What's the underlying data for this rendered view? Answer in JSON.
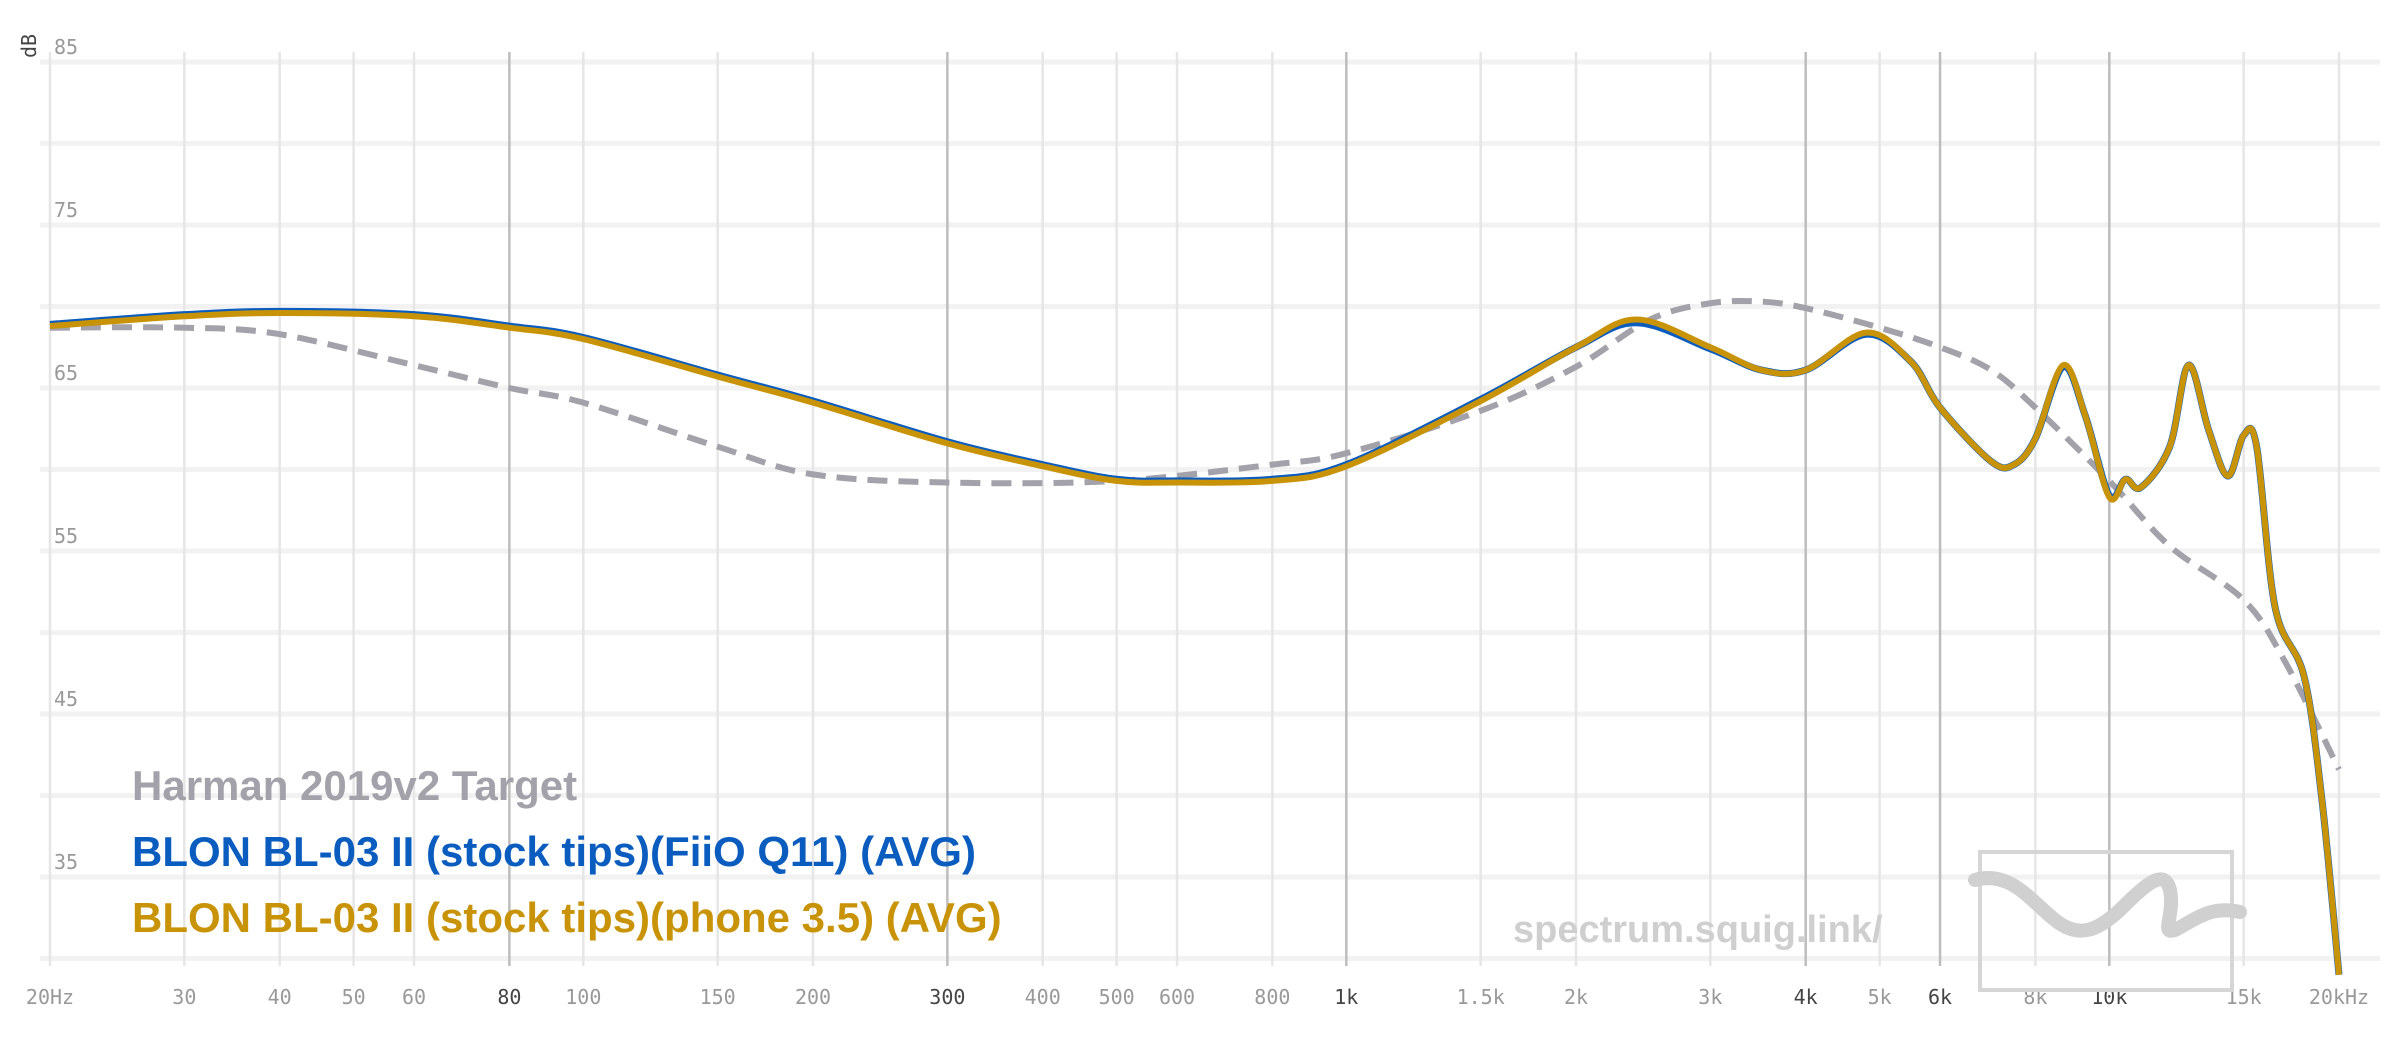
{
  "chart_data": {
    "type": "line",
    "title": "",
    "xlabel": "",
    "ylabel": "dB",
    "xscale": "log",
    "xlim": [
      20,
      20000
    ],
    "ylim": [
      30,
      88
    ],
    "grid": true,
    "legend_placement": "bottom-left",
    "y_ticks": [
      85,
      75,
      65,
      55,
      45,
      35
    ],
    "x_ticks": [
      {
        "value": 20,
        "label": "20Hz",
        "major": false
      },
      {
        "value": 30,
        "label": "30",
        "major": false
      },
      {
        "value": 40,
        "label": "40",
        "major": false
      },
      {
        "value": 50,
        "label": "50",
        "major": false
      },
      {
        "value": 60,
        "label": "60",
        "major": false
      },
      {
        "value": 80,
        "label": "80",
        "major": true
      },
      {
        "value": 100,
        "label": "100",
        "major": false
      },
      {
        "value": 150,
        "label": "150",
        "major": false
      },
      {
        "value": 200,
        "label": "200",
        "major": false
      },
      {
        "value": 300,
        "label": "300",
        "major": true
      },
      {
        "value": 400,
        "label": "400",
        "major": false
      },
      {
        "value": 500,
        "label": "500",
        "major": false
      },
      {
        "value": 600,
        "label": "600",
        "major": false
      },
      {
        "value": 800,
        "label": "800",
        "major": false
      },
      {
        "value": 1000,
        "label": "1k",
        "major": true
      },
      {
        "value": 1500,
        "label": "1.5k",
        "major": false
      },
      {
        "value": 2000,
        "label": "2k",
        "major": false
      },
      {
        "value": 3000,
        "label": "3k",
        "major": false
      },
      {
        "value": 4000,
        "label": "4k",
        "major": true
      },
      {
        "value": 5000,
        "label": "5k",
        "major": false
      },
      {
        "value": 6000,
        "label": "6k",
        "major": true
      },
      {
        "value": 8000,
        "label": "8k",
        "major": false
      },
      {
        "value": 10000,
        "label": "10k",
        "major": true
      },
      {
        "value": 15000,
        "label": "15k",
        "major": false
      },
      {
        "value": 20000,
        "label": "20kHz",
        "major": false
      }
    ],
    "series": [
      {
        "name": "Harman 2019v2 Target",
        "color": "#a3a1aa",
        "dashed": true,
        "x": [
          20,
          30,
          40,
          60,
          80,
          100,
          150,
          200,
          300,
          500,
          800,
          1000,
          1500,
          2000,
          2500,
          3000,
          3500,
          4000,
          5000,
          6000,
          7000,
          8000,
          10000,
          12000,
          15000,
          17000,
          20000
        ],
        "y": [
          68.7,
          68.7,
          68.3,
          66.4,
          65.0,
          64.1,
          61.4,
          59.7,
          59.2,
          59.3,
          60.3,
          61.0,
          63.6,
          66.3,
          69.2,
          70.2,
          70.3,
          69.9,
          68.7,
          67.5,
          66.1,
          63.8,
          59.3,
          55.3,
          52.0,
          48.2,
          41.6
        ]
      },
      {
        "name": "BLON BL-03 II (stock tips)(FiiO Q11) (AVG)",
        "color": "#0a5cbf",
        "dashed": false,
        "x": [
          20,
          30,
          40,
          60,
          80,
          100,
          150,
          200,
          300,
          400,
          500,
          600,
          800,
          1000,
          1500,
          2000,
          2400,
          3000,
          3500,
          4000,
          4800,
          5500,
          6000,
          7000,
          7500,
          8000,
          8700,
          9300,
          10000,
          10500,
          11000,
          12000,
          12700,
          13500,
          14300,
          15000,
          15600,
          16500,
          18000,
          19000,
          20000
        ],
        "y": [
          68.9,
          69.5,
          69.7,
          69.5,
          68.8,
          68.1,
          65.8,
          64.2,
          61.7,
          60.3,
          59.4,
          59.3,
          59.4,
          60.3,
          64.3,
          67.5,
          69.0,
          67.4,
          66.1,
          66.1,
          68.3,
          66.6,
          63.8,
          60.5,
          60.3,
          61.9,
          66.3,
          63.3,
          58.4,
          59.4,
          58.9,
          61.4,
          66.4,
          62.4,
          59.6,
          62.1,
          61.4,
          51.5,
          47.3,
          39.7,
          29.0
        ]
      },
      {
        "name": "BLON BL-03 II (stock tips)(phone 3.5) (AVG)",
        "color": "#c99308",
        "dashed": false,
        "x": [
          20,
          30,
          40,
          60,
          80,
          100,
          150,
          200,
          300,
          400,
          500,
          600,
          800,
          1000,
          1500,
          2000,
          2400,
          3000,
          3500,
          4000,
          4800,
          5500,
          6000,
          7000,
          7500,
          8000,
          8700,
          9300,
          10000,
          10500,
          11000,
          12000,
          12700,
          13500,
          14300,
          15000,
          15600,
          16500,
          18000,
          19000,
          20000
        ],
        "y": [
          68.8,
          69.4,
          69.6,
          69.4,
          68.7,
          68.0,
          65.7,
          64.1,
          61.6,
          60.2,
          59.3,
          59.2,
          59.3,
          60.2,
          64.2,
          67.5,
          69.2,
          67.5,
          66.1,
          66.1,
          68.4,
          66.6,
          63.8,
          60.5,
          60.3,
          61.9,
          66.4,
          63.3,
          58.3,
          59.4,
          58.9,
          61.4,
          66.4,
          62.4,
          59.6,
          62.1,
          61.4,
          51.5,
          47.3,
          39.7,
          29.0
        ]
      }
    ]
  },
  "watermark": "spectrum.squig.link/"
}
